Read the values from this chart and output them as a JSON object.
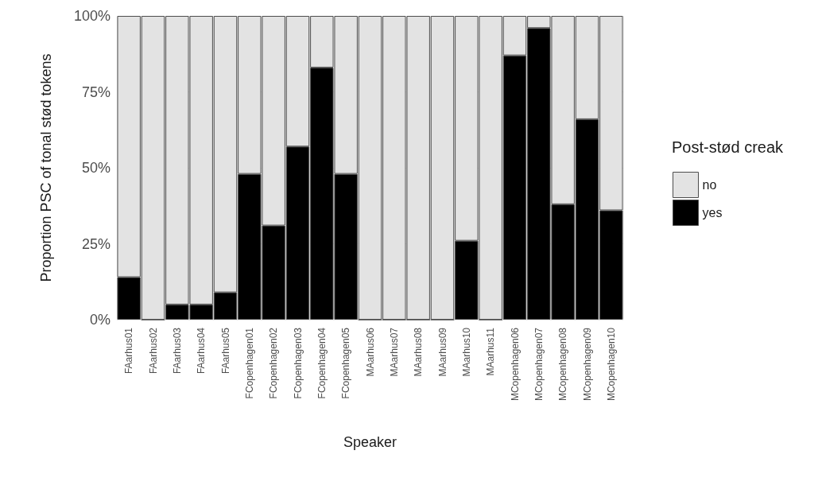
{
  "chart_data": {
    "type": "bar",
    "stacked": true,
    "xlabel": "Speaker",
    "ylabel": "Proportion PSC of tonal stød tokens",
    "legend_title": "Post-stød creak",
    "legend": "right",
    "grid": true,
    "categories": [
      "FAarhus01",
      "FAarhus02",
      "FAarhus03",
      "FAarhus04",
      "FAarhus05",
      "FCopenhagen01",
      "FCopenhagen02",
      "FCopenhagen03",
      "FCopenhagen04",
      "FCopenhagen05",
      "MAarhus06",
      "MAarhus07",
      "MAarhus08",
      "MAarhus09",
      "MAarhus10",
      "MAarhus11",
      "MCopenhagen06",
      "MCopenhagen07",
      "MCopenhagen08",
      "MCopenhagen09",
      "MCopenhagen10"
    ],
    "series": [
      {
        "name": "yes",
        "color": "#000000",
        "values": [
          14,
          0,
          5,
          5,
          9,
          48,
          31,
          57,
          83,
          48,
          0,
          0,
          0,
          0,
          26,
          0,
          87,
          96,
          38,
          66,
          36
        ]
      },
      {
        "name": "no",
        "color": "#e3e3e3",
        "values": [
          86,
          100,
          95,
          95,
          91,
          52,
          69,
          43,
          17,
          52,
          100,
          100,
          100,
          100,
          74,
          100,
          13,
          4,
          62,
          34,
          64
        ]
      }
    ],
    "ylim": [
      0,
      100
    ],
    "yticks": [
      {
        "value": 0,
        "label": "0%"
      },
      {
        "value": 25,
        "label": "25%"
      },
      {
        "value": 50,
        "label": "50%"
      },
      {
        "value": 75,
        "label": "75%"
      },
      {
        "value": 100,
        "label": "100%"
      }
    ]
  }
}
